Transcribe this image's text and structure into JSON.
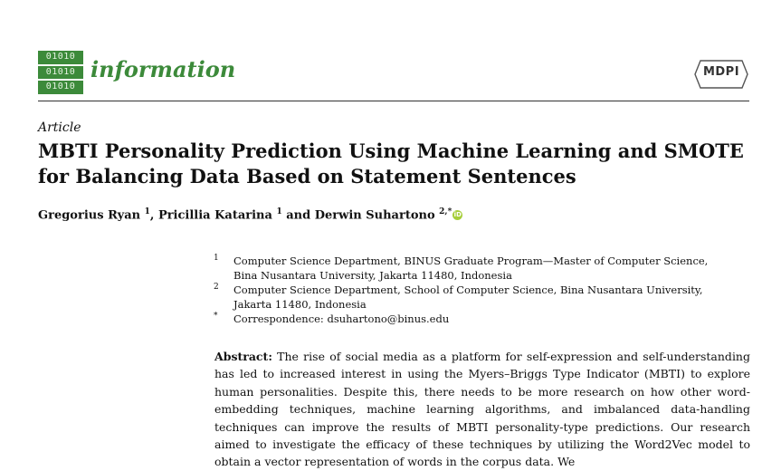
{
  "header": {
    "logo_rows": [
      "01010",
      "01010",
      "01010"
    ],
    "journal_name": "information",
    "publisher": "MDPI"
  },
  "article_type": "Article",
  "title": "MBTI Personality Prediction Using Machine Learning and SMOTE for Balancing Data Based on Statement Sentences",
  "authors": [
    {
      "name": "Gregorius Ryan",
      "sup": "1"
    },
    {
      "name": "Pricillia Katarina",
      "sup": "1"
    },
    {
      "name": "Derwin Suhartono",
      "sup": "2,*"
    }
  ],
  "author_connectors": [
    ", ",
    " and "
  ],
  "orcid_label": "iD",
  "affiliations": [
    {
      "mark": "1",
      "lines": [
        "Computer Science Department, BINUS Graduate Program—Master of Computer Science,",
        "Bina Nusantara University, Jakarta 11480, Indonesia"
      ]
    },
    {
      "mark": "2",
      "lines": [
        "Computer Science Department, School of Computer Science, Bina Nusantara University,",
        "Jakarta 11480, Indonesia"
      ]
    },
    {
      "mark": "*",
      "lines": [
        "Correspondence: dsuhartono@binus.edu"
      ]
    }
  ],
  "abstract": {
    "label": "Abstract:",
    "text": "The rise of social media as a platform for self-expression and self-understanding has led to increased interest in using the Myers–Briggs Type Indicator (MBTI) to explore human personalities. Despite this, there needs to be more research on how other word-embedding techniques, machine learning algorithms, and imbalanced data-handling techniques can improve the results of MBTI personality-type predictions. Our research aimed to investigate the efficacy of these techniques by utilizing the Word2Vec model to obtain a vector representation of words in the corpus data. We"
  }
}
